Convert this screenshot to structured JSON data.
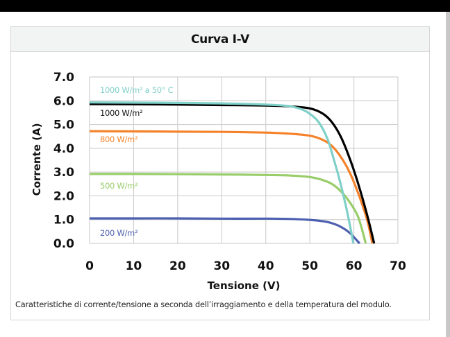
{
  "window": {
    "title": "Curva I-V"
  },
  "caption": "Caratteristiche di corrente/tensione a seconda dell’irraggiamento e della temperatura del modulo.",
  "colors": {
    "grid": "#d0d0d0",
    "header_bg": "#f2f3f3",
    "border": "#d6d6d6"
  },
  "chart_data": {
    "type": "line",
    "title": "Curva I-V",
    "xlabel": "Tensione (V)",
    "ylabel": "Corrente (A)",
    "xlim": [
      0,
      70
    ],
    "ylim": [
      0,
      7
    ],
    "grid": true,
    "x_ticks": [
      "0",
      "10",
      "20",
      "30",
      "40",
      "50",
      "60",
      "70"
    ],
    "y_ticks": [
      "0.0",
      "1.0",
      "2.0",
      "3.0",
      "4.0",
      "5.0",
      "6.0",
      "7.0"
    ],
    "x_tick_values": [
      0,
      10,
      20,
      30,
      40,
      50,
      60,
      70
    ],
    "y_tick_values": [
      0,
      1,
      2,
      3,
      4,
      5,
      6,
      7
    ],
    "legend_placement": "inline-left",
    "series": [
      {
        "name": "1000 W/m² a 50° C",
        "color": "#7fd0c8",
        "label_color": "#7fd0c8",
        "points": [
          [
            0,
            5.93
          ],
          [
            10,
            5.92
          ],
          [
            20,
            5.91
          ],
          [
            30,
            5.89
          ],
          [
            40,
            5.84
          ],
          [
            45,
            5.78
          ],
          [
            48,
            5.65
          ],
          [
            50,
            5.45
          ],
          [
            52,
            5.1
          ],
          [
            54,
            4.4
          ],
          [
            55.5,
            3.5
          ],
          [
            57,
            2.5
          ],
          [
            58.5,
            1.3
          ],
          [
            59.9,
            0
          ]
        ]
      },
      {
        "name": "1000 W/m²",
        "color": "#000000",
        "label_color": "#111111",
        "points": [
          [
            0,
            5.86
          ],
          [
            10,
            5.85
          ],
          [
            20,
            5.84
          ],
          [
            30,
            5.82
          ],
          [
            40,
            5.8
          ],
          [
            45,
            5.77
          ],
          [
            50,
            5.68
          ],
          [
            53,
            5.45
          ],
          [
            55,
            5.1
          ],
          [
            57,
            4.5
          ],
          [
            59,
            3.6
          ],
          [
            61,
            2.5
          ],
          [
            63,
            1.2
          ],
          [
            64.6,
            0
          ]
        ]
      },
      {
        "name": "800 W/m²",
        "color": "#f5822a",
        "label_color": "#f5822a",
        "points": [
          [
            0,
            4.72
          ],
          [
            10,
            4.71
          ],
          [
            20,
            4.7
          ],
          [
            30,
            4.69
          ],
          [
            40,
            4.66
          ],
          [
            45,
            4.62
          ],
          [
            50,
            4.53
          ],
          [
            53,
            4.35
          ],
          [
            55,
            4.1
          ],
          [
            57,
            3.65
          ],
          [
            59,
            3.0
          ],
          [
            61,
            2.1
          ],
          [
            63,
            1.0
          ],
          [
            64.2,
            0
          ]
        ]
      },
      {
        "name": "500 W/m²",
        "color": "#98cd6a",
        "label_color": "#98cd6a",
        "points": [
          [
            0,
            2.92
          ],
          [
            10,
            2.92
          ],
          [
            20,
            2.91
          ],
          [
            30,
            2.9
          ],
          [
            40,
            2.88
          ],
          [
            45,
            2.86
          ],
          [
            50,
            2.79
          ],
          [
            53,
            2.66
          ],
          [
            55,
            2.5
          ],
          [
            57,
            2.2
          ],
          [
            59,
            1.75
          ],
          [
            61,
            1.1
          ],
          [
            62.7,
            0
          ]
        ]
      },
      {
        "name": "200 W/m²",
        "color": "#4c5fb0",
        "label_color": "#4c5fb0",
        "points": [
          [
            0,
            1.05
          ],
          [
            10,
            1.05
          ],
          [
            20,
            1.05
          ],
          [
            30,
            1.04
          ],
          [
            40,
            1.04
          ],
          [
            45,
            1.03
          ],
          [
            50,
            0.99
          ],
          [
            53,
            0.93
          ],
          [
            55,
            0.85
          ],
          [
            57,
            0.7
          ],
          [
            59,
            0.45
          ],
          [
            61.3,
            0
          ]
        ]
      }
    ]
  }
}
